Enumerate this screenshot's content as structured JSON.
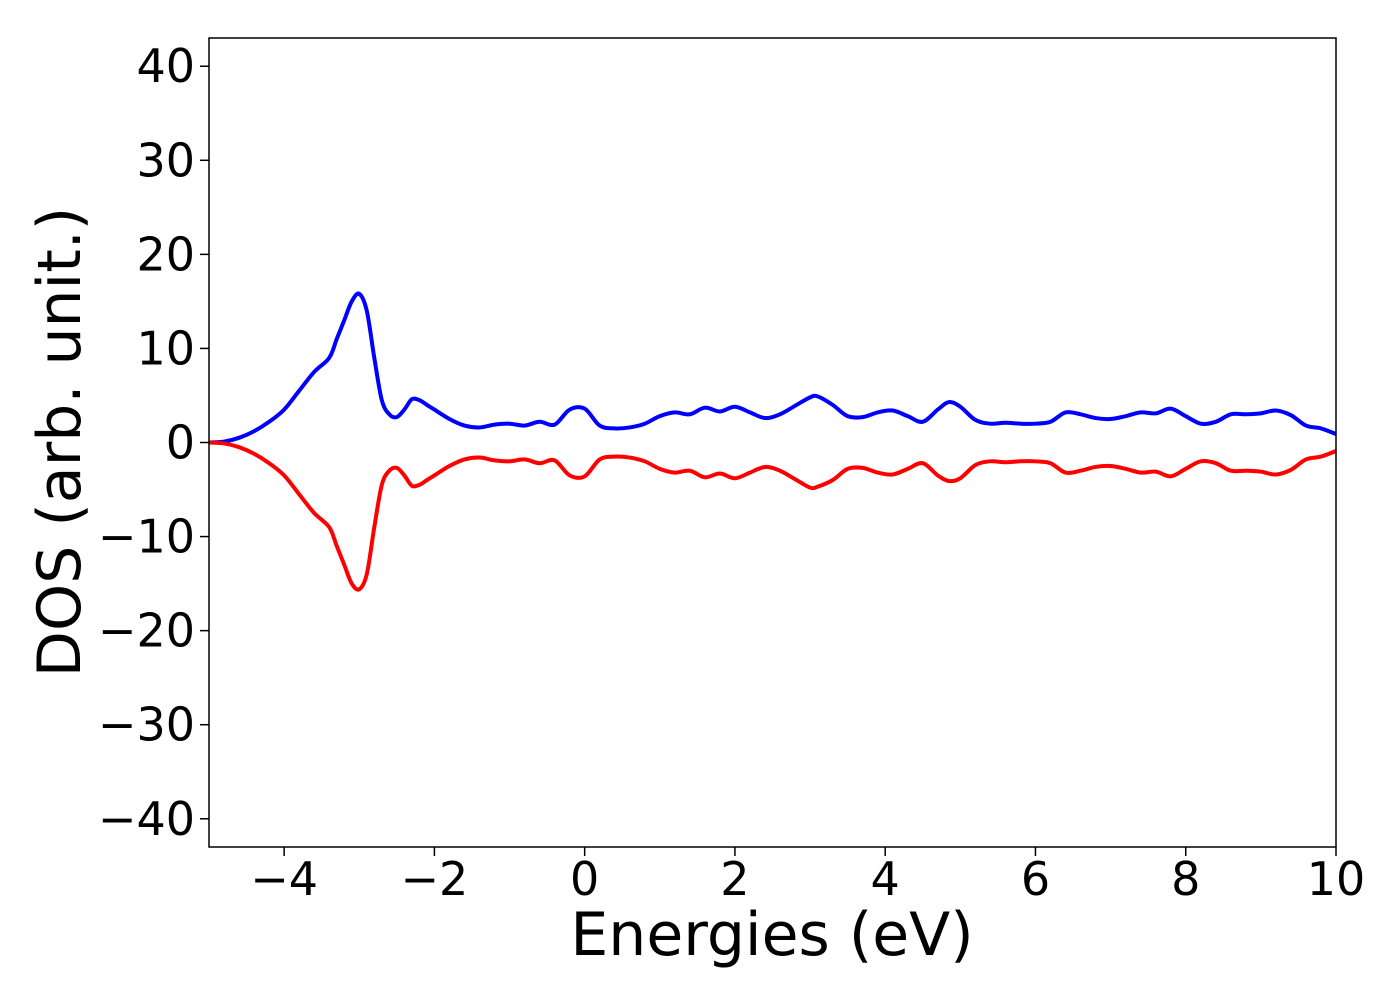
{
  "chart_data": {
    "type": "line",
    "xlabel": "Energies (eV)",
    "ylabel": "DOS (arb. unit.)",
    "xlim": [
      -5,
      10
    ],
    "ylim": [
      -43,
      43
    ],
    "xticks": [
      -4,
      -2,
      0,
      2,
      4,
      6,
      8,
      10
    ],
    "yticks": [
      40,
      30,
      20,
      10,
      0,
      -10,
      -20,
      -30,
      -40
    ],
    "xtick_labels": [
      "−4",
      "−2",
      "0",
      "2",
      "4",
      "6",
      "8",
      "10"
    ],
    "ytick_labels": [
      "40",
      "30",
      "20",
      "10",
      "0",
      "−10",
      "−20",
      "−30",
      "−40"
    ],
    "grid": false,
    "series": [
      {
        "color": "#0000ff",
        "x": [
          -5.0,
          -4.8,
          -4.6,
          -4.4,
          -4.2,
          -4.0,
          -3.8,
          -3.6,
          -3.4,
          -3.3,
          -3.2,
          -3.1,
          -3.0,
          -2.9,
          -2.8,
          -2.7,
          -2.6,
          -2.5,
          -2.4,
          -2.3,
          -2.2,
          -2.1,
          -2.0,
          -1.8,
          -1.6,
          -1.4,
          -1.2,
          -1.0,
          -0.8,
          -0.6,
          -0.4,
          -0.2,
          0.0,
          0.2,
          0.4,
          0.6,
          0.8,
          1.0,
          1.2,
          1.4,
          1.6,
          1.8,
          2.0,
          2.2,
          2.4,
          2.6,
          2.8,
          3.0,
          3.1,
          3.3,
          3.5,
          3.7,
          3.9,
          4.1,
          4.3,
          4.5,
          4.7,
          4.85,
          5.0,
          5.2,
          5.4,
          5.6,
          5.8,
          6.0,
          6.2,
          6.4,
          6.6,
          6.8,
          7.0,
          7.2,
          7.4,
          7.6,
          7.8,
          8.0,
          8.2,
          8.4,
          8.6,
          8.8,
          9.0,
          9.2,
          9.4,
          9.6,
          9.8,
          10.0
        ],
        "y": [
          0.0,
          0.1,
          0.5,
          1.2,
          2.2,
          3.5,
          5.5,
          7.5,
          9.0,
          11.0,
          13.0,
          15.0,
          15.8,
          14.0,
          9.0,
          4.5,
          3.0,
          2.7,
          3.5,
          4.6,
          4.5,
          4.0,
          3.5,
          2.5,
          1.8,
          1.6,
          1.9,
          2.0,
          1.8,
          2.2,
          1.9,
          3.5,
          3.6,
          1.8,
          1.5,
          1.6,
          2.0,
          2.8,
          3.2,
          3.0,
          3.7,
          3.3,
          3.8,
          3.2,
          2.6,
          3.0,
          3.9,
          4.8,
          4.9,
          4.0,
          2.8,
          2.7,
          3.2,
          3.4,
          2.8,
          2.2,
          3.5,
          4.3,
          3.8,
          2.4,
          2.0,
          2.1,
          2.0,
          2.0,
          2.2,
          3.2,
          3.0,
          2.6,
          2.5,
          2.8,
          3.2,
          3.1,
          3.6,
          2.8,
          2.0,
          2.2,
          3.0,
          3.0,
          3.1,
          3.4,
          2.9,
          1.8,
          1.5,
          0.9
        ]
      },
      {
        "color": "#ff0000",
        "x": [
          -5.0,
          -4.8,
          -4.6,
          -4.4,
          -4.2,
          -4.0,
          -3.8,
          -3.6,
          -3.4,
          -3.3,
          -3.2,
          -3.1,
          -3.0,
          -2.9,
          -2.8,
          -2.7,
          -2.6,
          -2.5,
          -2.4,
          -2.3,
          -2.2,
          -2.1,
          -2.0,
          -1.8,
          -1.6,
          -1.4,
          -1.2,
          -1.0,
          -0.8,
          -0.6,
          -0.4,
          -0.2,
          0.0,
          0.2,
          0.4,
          0.6,
          0.8,
          1.0,
          1.2,
          1.4,
          1.6,
          1.8,
          2.0,
          2.2,
          2.4,
          2.6,
          2.8,
          3.0,
          3.1,
          3.3,
          3.5,
          3.7,
          3.9,
          4.1,
          4.3,
          4.5,
          4.7,
          4.85,
          5.0,
          5.2,
          5.4,
          5.6,
          5.8,
          6.0,
          6.2,
          6.4,
          6.6,
          6.8,
          7.0,
          7.2,
          7.4,
          7.6,
          7.8,
          8.0,
          8.2,
          8.4,
          8.6,
          8.8,
          9.0,
          9.2,
          9.4,
          9.6,
          9.8,
          10.0
        ],
        "y": [
          0.0,
          -0.1,
          -0.5,
          -1.2,
          -2.2,
          -3.5,
          -5.5,
          -7.5,
          -9.0,
          -11.0,
          -13.0,
          -15.0,
          -15.6,
          -14.0,
          -9.0,
          -4.5,
          -3.0,
          -2.7,
          -3.5,
          -4.6,
          -4.5,
          -4.0,
          -3.5,
          -2.5,
          -1.8,
          -1.6,
          -1.9,
          -2.0,
          -1.8,
          -2.2,
          -1.9,
          -3.5,
          -3.6,
          -1.8,
          -1.5,
          -1.6,
          -2.0,
          -2.8,
          -3.2,
          -3.0,
          -3.7,
          -3.3,
          -3.8,
          -3.2,
          -2.6,
          -3.0,
          -3.9,
          -4.8,
          -4.7,
          -4.0,
          -2.8,
          -2.7,
          -3.2,
          -3.4,
          -2.8,
          -2.2,
          -3.5,
          -4.1,
          -3.8,
          -2.4,
          -2.0,
          -2.1,
          -2.0,
          -2.0,
          -2.2,
          -3.2,
          -3.0,
          -2.6,
          -2.5,
          -2.8,
          -3.2,
          -3.1,
          -3.6,
          -2.8,
          -2.0,
          -2.2,
          -3.0,
          -3.0,
          -3.1,
          -3.4,
          -2.9,
          -1.8,
          -1.5,
          -0.9
        ]
      }
    ]
  }
}
